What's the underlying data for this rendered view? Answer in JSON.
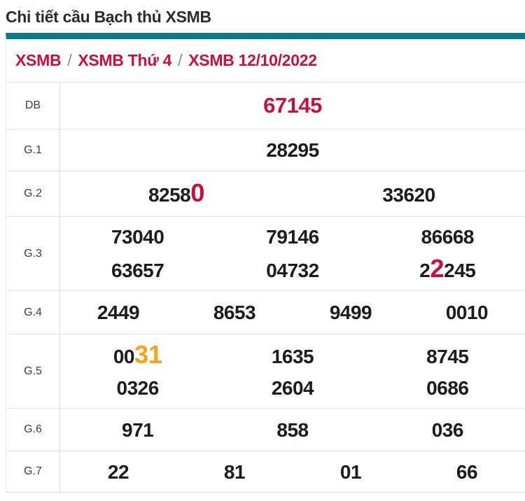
{
  "title": "Chi tiết cầu Bạch thủ XSMB",
  "breadcrumb": {
    "separator": "/",
    "items": [
      "XSMB",
      "XSMB Thứ 4",
      "XSMB 12/10/2022"
    ]
  },
  "colors": {
    "accent_teal": "#087b86",
    "highlight_red": "#c8103e",
    "highlight_orange": "#ffa11a",
    "number_text": "#1c1c1c",
    "row_border": "#e3e3e3"
  },
  "table": {
    "rows": [
      {
        "label": "DB",
        "lines": [
          [
            [
              {
                "t": "67145",
                "c": "red"
              }
            ]
          ]
        ]
      },
      {
        "label": "G.1",
        "lines": [
          [
            [
              {
                "t": "28295"
              }
            ]
          ]
        ]
      },
      {
        "label": "G.2",
        "lines": [
          [
            [
              {
                "t": "8258"
              },
              {
                "t": "0",
                "c": "red",
                "big": true
              }
            ],
            [
              {
                "t": "33620"
              }
            ]
          ]
        ]
      },
      {
        "label": "G.3",
        "lines": [
          [
            [
              {
                "t": "73040"
              }
            ],
            [
              {
                "t": "79146"
              }
            ],
            [
              {
                "t": "86668"
              }
            ]
          ],
          [
            [
              {
                "t": "63657"
              }
            ],
            [
              {
                "t": "04732"
              }
            ],
            [
              {
                "t": "2"
              },
              {
                "t": "2",
                "c": "red",
                "big": true
              },
              {
                "t": "245"
              }
            ]
          ]
        ]
      },
      {
        "label": "G.4",
        "lines": [
          [
            [
              {
                "t": "2449"
              }
            ],
            [
              {
                "t": "8653"
              }
            ],
            [
              {
                "t": "9499"
              }
            ],
            [
              {
                "t": "0010"
              }
            ]
          ]
        ]
      },
      {
        "label": "G.5",
        "lines": [
          [
            [
              {
                "t": "00"
              },
              {
                "t": "31",
                "c": "orange",
                "big": true
              }
            ],
            [
              {
                "t": "1635"
              }
            ],
            [
              {
                "t": "8745"
              }
            ]
          ],
          [
            [
              {
                "t": "0326"
              }
            ],
            [
              {
                "t": "2604"
              }
            ],
            [
              {
                "t": "0686"
              }
            ]
          ]
        ]
      },
      {
        "label": "G.6",
        "lines": [
          [
            [
              {
                "t": "971"
              }
            ],
            [
              {
                "t": "858"
              }
            ],
            [
              {
                "t": "036"
              }
            ]
          ]
        ]
      },
      {
        "label": "G.7",
        "lines": [
          [
            [
              {
                "t": "22"
              }
            ],
            [
              {
                "t": "81"
              }
            ],
            [
              {
                "t": "01"
              }
            ],
            [
              {
                "t": "66"
              }
            ]
          ]
        ]
      }
    ]
  }
}
